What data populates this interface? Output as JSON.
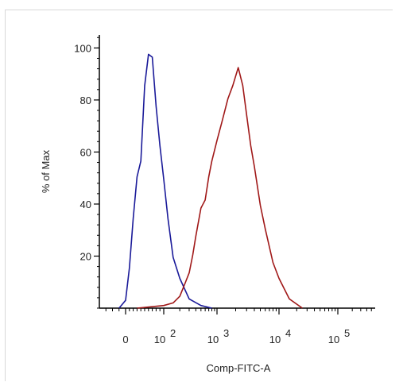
{
  "chart_data": {
    "type": "line",
    "title": "",
    "xlabel": "Comp-FITC-A",
    "ylabel": "% of Max",
    "ylim": [
      0,
      105
    ],
    "yticks": [
      20,
      40,
      60,
      80,
      100
    ],
    "xscale": "biexponential",
    "xticks": [
      {
        "value": 0,
        "base": "0",
        "exp": ""
      },
      {
        "value": 100,
        "base": "10",
        "exp": "2"
      },
      {
        "value": 1000,
        "base": "10",
        "exp": "3"
      },
      {
        "value": 10000,
        "base": "10",
        "exp": "4"
      },
      {
        "value": 100000,
        "base": "10",
        "exp": "5"
      }
    ],
    "grid": false,
    "legend": "none",
    "series": [
      {
        "color": "#1a1a99",
        "x": [
          -5,
          0,
          10,
          20,
          30,
          40,
          50,
          60,
          70,
          80,
          90,
          100,
          120,
          150,
          200,
          300,
          500,
          800
        ],
        "y": [
          0,
          3,
          15,
          35,
          50,
          57,
          85,
          98,
          96,
          78,
          62,
          50,
          34,
          20,
          11,
          4,
          1,
          0
        ]
      },
      {
        "color": "#a01818",
        "x": [
          30,
          100,
          150,
          200,
          250,
          300,
          350,
          400,
          500,
          600,
          700,
          800,
          1000,
          1200,
          1500,
          1800,
          2200,
          2600,
          3000,
          3500,
          4000,
          5000,
          6000,
          8000,
          10000,
          15000,
          25000
        ],
        "y": [
          0,
          1,
          2,
          5,
          9,
          14,
          20,
          28,
          38,
          42,
          50,
          57,
          64,
          72,
          80,
          86,
          92,
          86,
          74,
          63,
          54,
          40,
          30,
          18,
          11,
          4,
          0
        ]
      }
    ]
  }
}
